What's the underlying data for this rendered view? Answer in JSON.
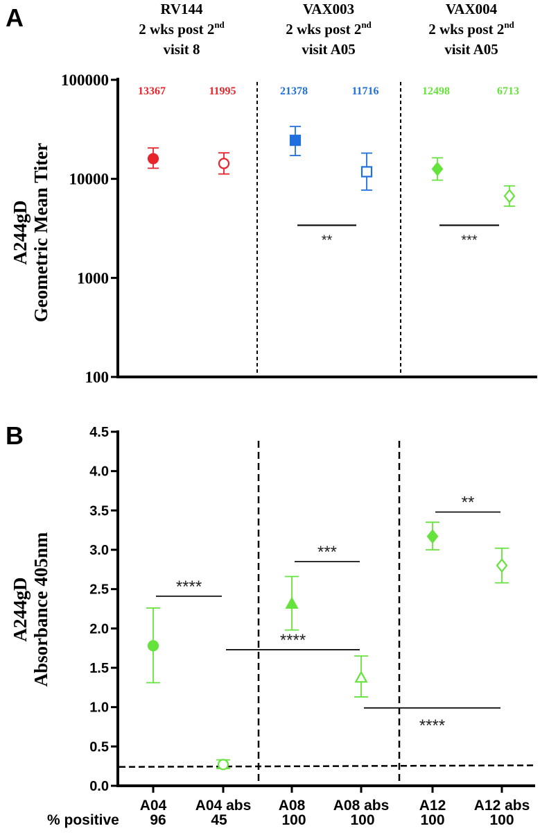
{
  "chart_data": [
    {
      "panel": "A",
      "type": "scatter",
      "yscale": "log",
      "ylim": [
        100,
        100000
      ],
      "ylabel_line1": "A244gD",
      "ylabel_line2": "Geometric Mean Titer",
      "yticks": [
        "100",
        "1000",
        "10000",
        "100000"
      ],
      "groups": [
        {
          "line1": "RV144",
          "line2_main": "2 wks post 2",
          "line2_sup": "nd",
          "line3": "visit 8"
        },
        {
          "line1": "VAX003",
          "line2_main": "2 wks post 2",
          "line2_sup": "nd",
          "line3": "visit A05"
        },
        {
          "line1": "VAX004",
          "line2_main": "2 wks post 2",
          "line2_sup": "nd",
          "line3": "visit A05"
        }
      ],
      "points": [
        {
          "label": "13367",
          "value": 16000,
          "err_low": 12800,
          "err_high": 20500,
          "marker": "circle",
          "filled": true,
          "color": "#e8242b"
        },
        {
          "label": "11995",
          "value": 14300,
          "err_low": 11200,
          "err_high": 18300,
          "marker": "circle",
          "filled": false,
          "color": "#e8242b"
        },
        {
          "label": "21378",
          "value": 24500,
          "err_low": 17200,
          "err_high": 33800,
          "marker": "square",
          "filled": true,
          "color": "#1f6fde"
        },
        {
          "label": "11716",
          "value": 11800,
          "err_low": 7700,
          "err_high": 18200,
          "marker": "square",
          "filled": false,
          "color": "#1f6fde"
        },
        {
          "label": "12498",
          "value": 12600,
          "err_low": 9700,
          "err_high": 16300,
          "marker": "diamond",
          "filled": true,
          "color": "#66e23c"
        },
        {
          "label": "6713",
          "value": 6700,
          "err_low": 5300,
          "err_high": 8500,
          "marker": "diamond",
          "filled": false,
          "color": "#66e23c"
        }
      ],
      "significance": [
        {
          "from": 2,
          "to": 3,
          "y": 3400,
          "label": "**"
        },
        {
          "from": 4,
          "to": 5,
          "y": 3400,
          "label": "***"
        }
      ]
    },
    {
      "panel": "B",
      "type": "scatter",
      "ylim": [
        0,
        4.5
      ],
      "ylabel_line1": "A244gD",
      "ylabel_line2": "Absorbance 405nm",
      "yticks": [
        "0.0",
        "0.5",
        "1.0",
        "1.5",
        "2.0",
        "2.5",
        "3.0",
        "3.5",
        "4.0",
        "4.5"
      ],
      "categories": [
        "A04",
        "A04 abs",
        "A08",
        "A08 abs",
        "A12",
        "A12 abs"
      ],
      "percent_positive_label": "% positive",
      "percent_positive": [
        "96",
        "45",
        "100",
        "100",
        "100",
        "100"
      ],
      "points": [
        {
          "value": 1.78,
          "err_low": 1.31,
          "err_high": 2.26,
          "marker": "circle",
          "filled": true
        },
        {
          "value": 0.27,
          "err_low": 0.22,
          "err_high": 0.33,
          "marker": "circle",
          "filled": false
        },
        {
          "value": 2.31,
          "err_low": 1.98,
          "err_high": 2.66,
          "marker": "triangle",
          "filled": true
        },
        {
          "value": 1.37,
          "err_low": 1.13,
          "err_high": 1.65,
          "marker": "triangle",
          "filled": false
        },
        {
          "value": 3.17,
          "err_low": 3.0,
          "err_high": 3.35,
          "marker": "diamond",
          "filled": true
        },
        {
          "value": 2.8,
          "err_low": 2.58,
          "err_high": 3.02,
          "marker": "diamond",
          "filled": false
        }
      ],
      "color": "#66e23c",
      "cutoff": {
        "y0": 0.24,
        "y1": 0.26
      },
      "significance": [
        {
          "from": 0,
          "to": 1,
          "y": 2.41,
          "label": "****",
          "label_pos": "above"
        },
        {
          "from": 1,
          "to": 3,
          "y": 1.73,
          "label": "****",
          "label_pos": "above"
        },
        {
          "from": 2,
          "to": 3,
          "y": 2.85,
          "label": "***",
          "label_pos": "above"
        },
        {
          "from": 3,
          "to": 5,
          "y": 0.99,
          "label": "****",
          "label_pos": "below"
        },
        {
          "from": 4,
          "to": 5,
          "y": 3.48,
          "label": "**",
          "label_pos": "above"
        }
      ]
    }
  ],
  "panel_labels": {
    "a": "A",
    "b": "B"
  }
}
